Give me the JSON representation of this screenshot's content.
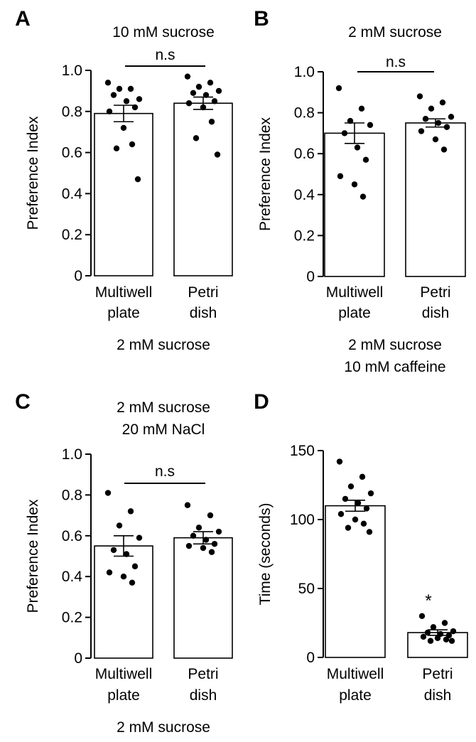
{
  "chart_data": [
    {
      "type": "bar",
      "panel": "A",
      "title": [
        "10 mM sucrose"
      ],
      "ylabel": "Preference Index",
      "xlabel": "",
      "ylim": [
        0,
        1.0
      ],
      "yticks": [
        0,
        0.2,
        0.4,
        0.6,
        0.8,
        1.0
      ],
      "ytick_labels": [
        "0",
        "0.2",
        "0.4",
        "0.6",
        "0.8",
        "1.0"
      ],
      "categories": [
        [
          "Multiwell",
          "plate"
        ],
        [
          "Petri",
          "dish"
        ]
      ],
      "values": [
        0.79,
        0.84
      ],
      "sem": [
        0.04,
        0.03
      ],
      "points": [
        [
          0.94,
          0.91,
          0.91,
          0.86,
          0.88,
          0.85,
          0.82,
          0.8,
          0.72,
          0.64,
          0.62,
          0.47
        ],
        [
          0.97,
          0.94,
          0.92,
          0.9,
          0.89,
          0.88,
          0.85,
          0.84,
          0.82,
          0.75,
          0.67,
          0.59
        ]
      ],
      "significance": "n.s",
      "condition": [
        "2 mM sucrose"
      ]
    },
    {
      "type": "bar",
      "panel": "B",
      "title": [
        "2 mM sucrose"
      ],
      "ylabel": "Preference Index",
      "xlabel": "",
      "ylim": [
        0,
        1.0
      ],
      "yticks": [
        0,
        0.2,
        0.4,
        0.6,
        0.8,
        1.0
      ],
      "ytick_labels": [
        "0",
        "0.2",
        "0.4",
        "0.6",
        "0.8",
        "1.0"
      ],
      "categories": [
        [
          "Multiwell",
          "plate"
        ],
        [
          "Petri",
          "dish"
        ]
      ],
      "values": [
        0.7,
        0.75
      ],
      "sem": [
        0.05,
        0.02
      ],
      "points": [
        [
          0.92,
          0.82,
          0.76,
          0.74,
          0.7,
          0.63,
          0.57,
          0.49,
          0.45,
          0.39
        ],
        [
          0.88,
          0.85,
          0.82,
          0.78,
          0.77,
          0.75,
          0.73,
          0.71,
          0.67,
          0.62
        ]
      ],
      "significance": "n.s",
      "condition": [
        "2 mM sucrose",
        "10 mM caffeine"
      ]
    },
    {
      "type": "bar",
      "panel": "C",
      "title": [
        "2 mM sucrose",
        "20 mM NaCl"
      ],
      "ylabel": "Preference Index",
      "xlabel": "",
      "ylim": [
        0,
        1.0
      ],
      "yticks": [
        0,
        0.2,
        0.4,
        0.6,
        0.8,
        1.0
      ],
      "ytick_labels": [
        "0",
        "0.2",
        "0.4",
        "0.6",
        "0.8",
        "1.0"
      ],
      "categories": [
        [
          "Multiwell",
          "plate"
        ],
        [
          "Petri",
          "dish"
        ]
      ],
      "values": [
        0.55,
        0.59
      ],
      "sem": [
        0.05,
        0.03
      ],
      "points": [
        [
          0.81,
          0.72,
          0.65,
          0.59,
          0.53,
          0.51,
          0.45,
          0.42,
          0.4,
          0.37
        ],
        [
          0.75,
          0.7,
          0.64,
          0.62,
          0.6,
          0.58,
          0.56,
          0.55,
          0.54,
          0.52
        ]
      ],
      "significance": "n.s",
      "condition": [
        "2 mM sucrose"
      ]
    },
    {
      "type": "bar",
      "panel": "D",
      "title": [],
      "ylabel": "Time (seconds)",
      "xlabel": "",
      "ylim": [
        0,
        150
      ],
      "yticks": [
        0,
        50,
        100,
        150
      ],
      "ytick_labels": [
        "0",
        "50",
        "100",
        "150"
      ],
      "categories": [
        [
          "Multiwell",
          "plate"
        ],
        [
          "Petri",
          "dish"
        ]
      ],
      "values": [
        110,
        18
      ],
      "sem": [
        4,
        2
      ],
      "points": [
        [
          142,
          131,
          124,
          119,
          115,
          112,
          108,
          104,
          100,
          97,
          94,
          91
        ],
        [
          30,
          25,
          22,
          19,
          18,
          17,
          16,
          15,
          14,
          13,
          12,
          12
        ]
      ],
      "significance": "*",
      "condition": []
    }
  ]
}
